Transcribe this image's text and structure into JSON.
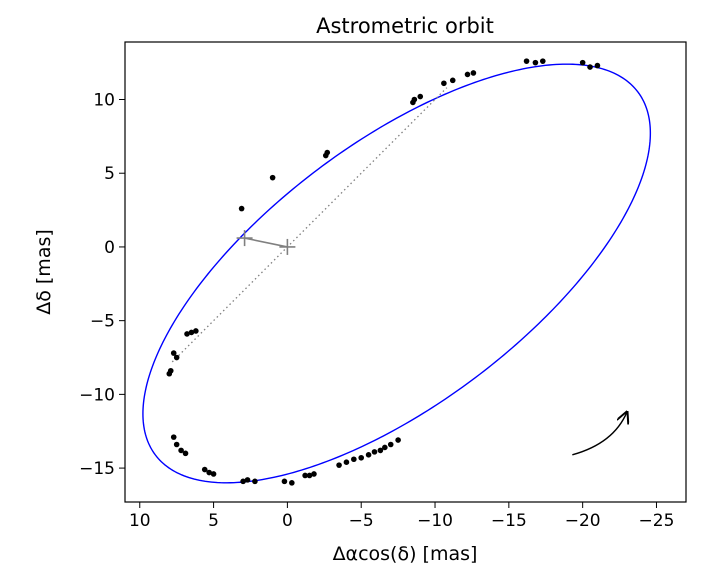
{
  "chart_data": {
    "type": "scatter",
    "title": "Astrometric orbit",
    "xlabel": "Δαcos(δ) [mas]",
    "ylabel": "Δδ [mas]",
    "xlim": [
      11.0,
      -27.0
    ],
    "ylim": [
      -17.3,
      13.9
    ],
    "x_inverted": true,
    "grid": false,
    "xticks": [
      10,
      5,
      0,
      -5,
      -10,
      -15,
      -20,
      -25
    ],
    "yticks": [
      10,
      5,
      0,
      -5,
      -10,
      -15
    ],
    "xtick_labels": [
      "10",
      "5",
      "0",
      "−5",
      "−10",
      "−15",
      "−20",
      "−25"
    ],
    "ytick_labels": [
      "10",
      "5",
      "0",
      "−5",
      "−10",
      "−15"
    ],
    "orbit": {
      "center": [
        -7.4,
        -1.8
      ],
      "semi_major_axis": 20.46,
      "semi_minor_axis": 8.85,
      "major_axis_angle_deg": 37,
      "color": "#0000ff"
    },
    "periastron_line": {
      "from": [
        7.8,
        -7.8
      ],
      "to": [
        -10.8,
        10.8
      ],
      "color": "#808080"
    },
    "star_marker": [
      0,
      0
    ],
    "companion_marker": [
      2.9,
      0.6
    ],
    "marker_color": "#808080",
    "direction_arrow": {
      "from": [
        -19.3,
        -14.1
      ],
      "to": [
        -23.0,
        -11.2
      ],
      "color": "#000000"
    },
    "observations": [
      [
        8.0,
        -8.6
      ],
      [
        7.9,
        -8.4
      ],
      [
        7.7,
        -7.2
      ],
      [
        7.5,
        -7.5
      ],
      [
        6.8,
        -5.9
      ],
      [
        6.5,
        -5.8
      ],
      [
        6.2,
        -5.7
      ],
      [
        7.7,
        -12.9
      ],
      [
        7.5,
        -13.4
      ],
      [
        7.2,
        -13.8
      ],
      [
        6.9,
        -14.0
      ],
      [
        5.6,
        -15.1
      ],
      [
        5.3,
        -15.3
      ],
      [
        5.0,
        -15.4
      ],
      [
        3.0,
        -15.9
      ],
      [
        2.7,
        -15.8
      ],
      [
        2.2,
        -15.9
      ],
      [
        0.2,
        -15.9
      ],
      [
        -0.3,
        -16.0
      ],
      [
        -1.2,
        -15.5
      ],
      [
        -1.5,
        -15.5
      ],
      [
        -1.8,
        -15.4
      ],
      [
        -3.5,
        -14.8
      ],
      [
        -4.0,
        -14.6
      ],
      [
        -4.5,
        -14.4
      ],
      [
        -5.0,
        -14.3
      ],
      [
        -5.5,
        -14.1
      ],
      [
        -5.9,
        -13.9
      ],
      [
        -6.3,
        -13.8
      ],
      [
        -6.6,
        -13.6
      ],
      [
        -7.0,
        -13.4
      ],
      [
        -7.5,
        -13.1
      ],
      [
        -8.6,
        10.0
      ],
      [
        -9.0,
        10.2
      ],
      [
        -8.5,
        9.8
      ],
      [
        -10.6,
        11.1
      ],
      [
        -11.2,
        11.3
      ],
      [
        -12.2,
        11.7
      ],
      [
        -12.6,
        11.8
      ],
      [
        -16.2,
        12.6
      ],
      [
        -16.8,
        12.5
      ],
      [
        -17.3,
        12.6
      ],
      [
        -20.0,
        12.5
      ],
      [
        -20.5,
        12.2
      ],
      [
        -21.0,
        12.3
      ],
      [
        3.1,
        2.6
      ],
      [
        1.0,
        4.7
      ],
      [
        -2.6,
        6.2
      ],
      [
        -2.7,
        6.4
      ]
    ]
  }
}
